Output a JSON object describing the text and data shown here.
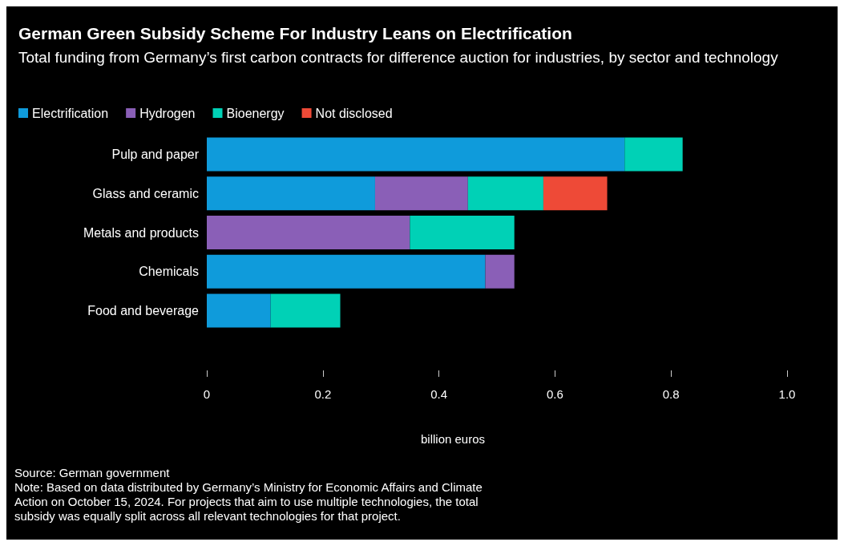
{
  "chart_data": {
    "type": "bar",
    "orientation": "horizontal",
    "stacked": true,
    "title": "German Green Subsidy Scheme For Industry Leans on Electrification",
    "subtitle": "Total funding from Germany’s first carbon contracts for difference auction for industries, by sector and technology",
    "categories": [
      "Pulp and paper",
      "Glass and ceramic",
      "Metals and products",
      "Chemicals",
      "Food and beverage"
    ],
    "series": [
      {
        "name": "Electrification",
        "color": "#0f9bdb",
        "values": [
          0.72,
          0.29,
          null,
          0.48,
          0.11
        ]
      },
      {
        "name": "Hydrogen",
        "color": "#8a5fb7",
        "values": [
          null,
          0.16,
          0.35,
          0.05,
          null
        ]
      },
      {
        "name": "Bioenergy",
        "color": "#00d1b6",
        "values": [
          0.1,
          0.13,
          0.18,
          null,
          0.12
        ]
      },
      {
        "name": "Not disclosed",
        "color": "#ee4a37",
        "values": [
          null,
          0.11,
          null,
          null,
          null
        ]
      }
    ],
    "xlim": [
      0,
      1.0
    ],
    "xticks": [
      0,
      0.2,
      0.4,
      0.6,
      0.8,
      {
        "value": 1.0,
        "label": "1.0"
      }
    ],
    "xlabel": "billion euros",
    "legend": "top left",
    "grid": false,
    "annotations": [
      "Source: German government",
      "Note: Based on data distributed by Germany’s Ministry for Economic Affairs and Climate Action on October 15, 2024. For projects that aim to use multiple technologies, the total subsidy was equally split across all relevant technologies for that project."
    ]
  }
}
